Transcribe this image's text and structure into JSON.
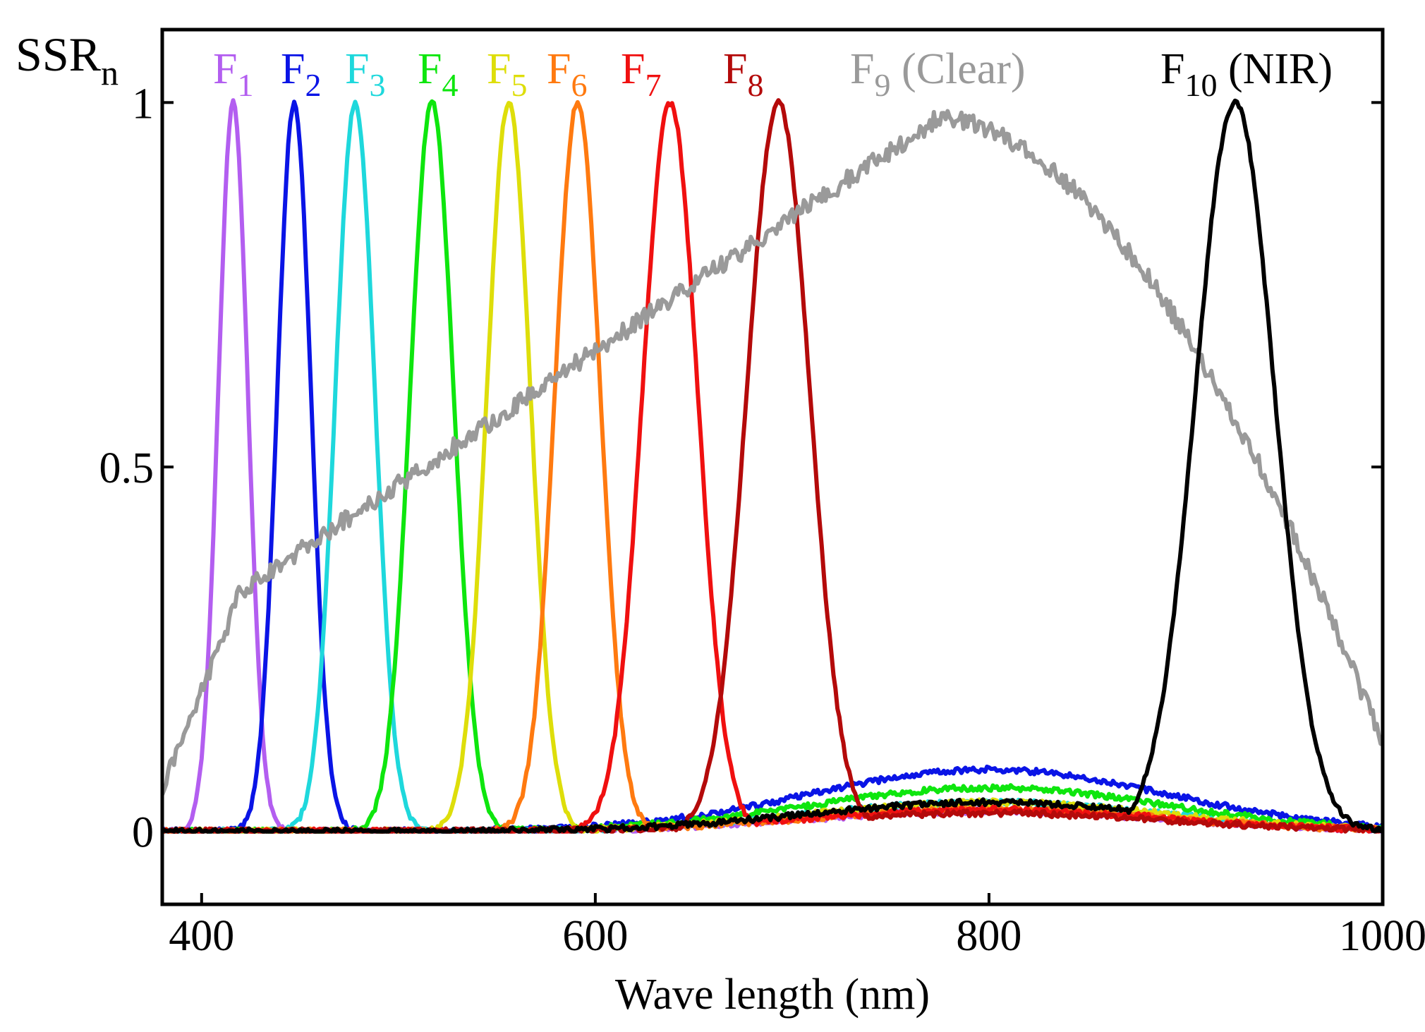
{
  "chart_data": {
    "type": "line",
    "ylabel": {
      "base": "SSR",
      "sub": "n"
    },
    "xlabel": "Wave length (nm)",
    "xlim": [
      380,
      1000
    ],
    "ylim": [
      -0.1,
      1.1
    ],
    "xticks": [
      400,
      600,
      800,
      1000
    ],
    "yticks": [
      0,
      0.5,
      1
    ],
    "ytick_labels": [
      "0",
      "0.5",
      "1"
    ],
    "grid": false,
    "series": [
      {
        "id": "F1",
        "label": "F",
        "sub": "1",
        "suffix": "",
        "color": "#b35ef0",
        "type": "band",
        "center": 416,
        "sigma": 7.5,
        "baseline": 0.028
      },
      {
        "id": "F2",
        "label": "F",
        "sub": "2",
        "suffix": "",
        "color": "#0a14e6",
        "type": "band",
        "center": 447,
        "sigma": 8.5,
        "baseline": 0.085
      },
      {
        "id": "F3",
        "label": "F",
        "sub": "3",
        "suffix": "",
        "color": "#1ed8dc",
        "type": "band",
        "center": 478,
        "sigma": 10,
        "baseline": 0.04
      },
      {
        "id": "F4",
        "label": "F",
        "sub": "4",
        "suffix": "",
        "color": "#0ee60e",
        "type": "band",
        "center": 517,
        "sigma": 11,
        "baseline": 0.06
      },
      {
        "id": "F5",
        "label": "F",
        "sub": "5",
        "suffix": "",
        "color": "#dede0a",
        "type": "band",
        "center": 556,
        "sigma": 11,
        "baseline": 0.04
      },
      {
        "id": "F6",
        "label": "F",
        "sub": "6",
        "suffix": "",
        "color": "#ff7a10",
        "type": "band",
        "center": 591,
        "sigma": 11.5,
        "baseline": 0.03
      },
      {
        "id": "F7",
        "label": "F",
        "sub": "7",
        "suffix": "",
        "color": "#f01010",
        "type": "band",
        "center": 638,
        "sigma": 14,
        "baseline": 0.03
      },
      {
        "id": "F8",
        "label": "F",
        "sub": "8",
        "suffix": "",
        "color": "#b40a0a",
        "type": "band",
        "center": 693,
        "sigma": 16,
        "baseline": 0.025
      },
      {
        "id": "F9",
        "label": "F",
        "sub": "9",
        "suffix": " (Clear)",
        "color": "#9a9a9a",
        "type": "broad"
      },
      {
        "id": "F10",
        "label": "F",
        "sub": "10",
        "suffix": " (NIR)",
        "color": "#000000",
        "type": "band",
        "center": 925,
        "sigma": 20,
        "baseline": 0.04
      }
    ]
  }
}
